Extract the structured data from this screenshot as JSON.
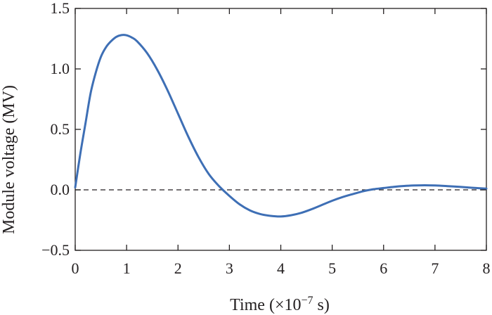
{
  "chart_data": {
    "type": "line",
    "title": "",
    "xlabel": "Time (×10−7 s)",
    "xlabel_parts": {
      "prefix": "Time (×10",
      "exponent": "−7",
      "suffix": " s)"
    },
    "ylabel": "Module voltage (MV)",
    "xlim": [
      0,
      8
    ],
    "ylim": [
      -0.5,
      1.5
    ],
    "x_ticks": [
      0,
      1,
      2,
      3,
      4,
      5,
      6,
      7,
      8
    ],
    "x_tick_labels": [
      "0",
      "1",
      "2",
      "3",
      "4",
      "5",
      "6",
      "7",
      "8"
    ],
    "y_ticks": [
      -0.5,
      0.0,
      0.5,
      1.0,
      1.5
    ],
    "y_tick_labels": [
      "−0.5",
      "0.0",
      "0.5",
      "1.0",
      "1.5"
    ],
    "grid": false,
    "reference_line": {
      "y": 0.0,
      "style": "dashed",
      "color": "#231f20"
    },
    "series": [
      {
        "color": "#3e6fb5",
        "x": [
          0,
          0.1,
          0.2,
          0.3,
          0.4,
          0.5,
          0.6,
          0.7,
          0.8,
          0.9,
          1.0,
          1.1,
          1.2,
          1.4,
          1.6,
          1.8,
          2.0,
          2.2,
          2.4,
          2.6,
          2.8,
          3.0,
          3.2,
          3.4,
          3.6,
          3.8,
          4.0,
          4.2,
          4.4,
          4.6,
          4.8,
          5.0,
          5.2,
          5.4,
          5.6,
          5.8,
          6.0,
          6.2,
          6.4,
          6.6,
          6.8,
          7.0,
          7.2,
          7.4,
          7.6,
          7.8,
          8.0
        ],
        "y": [
          0.02,
          0.3,
          0.55,
          0.8,
          0.97,
          1.1,
          1.18,
          1.23,
          1.265,
          1.28,
          1.278,
          1.26,
          1.23,
          1.13,
          0.99,
          0.82,
          0.63,
          0.44,
          0.27,
          0.13,
          0.03,
          -0.05,
          -0.12,
          -0.17,
          -0.2,
          -0.215,
          -0.22,
          -0.21,
          -0.19,
          -0.16,
          -0.125,
          -0.09,
          -0.06,
          -0.035,
          -0.012,
          0.005,
          0.015,
          0.025,
          0.032,
          0.036,
          0.038,
          0.036,
          0.032,
          0.027,
          0.021,
          0.015,
          0.01
        ]
      }
    ]
  }
}
